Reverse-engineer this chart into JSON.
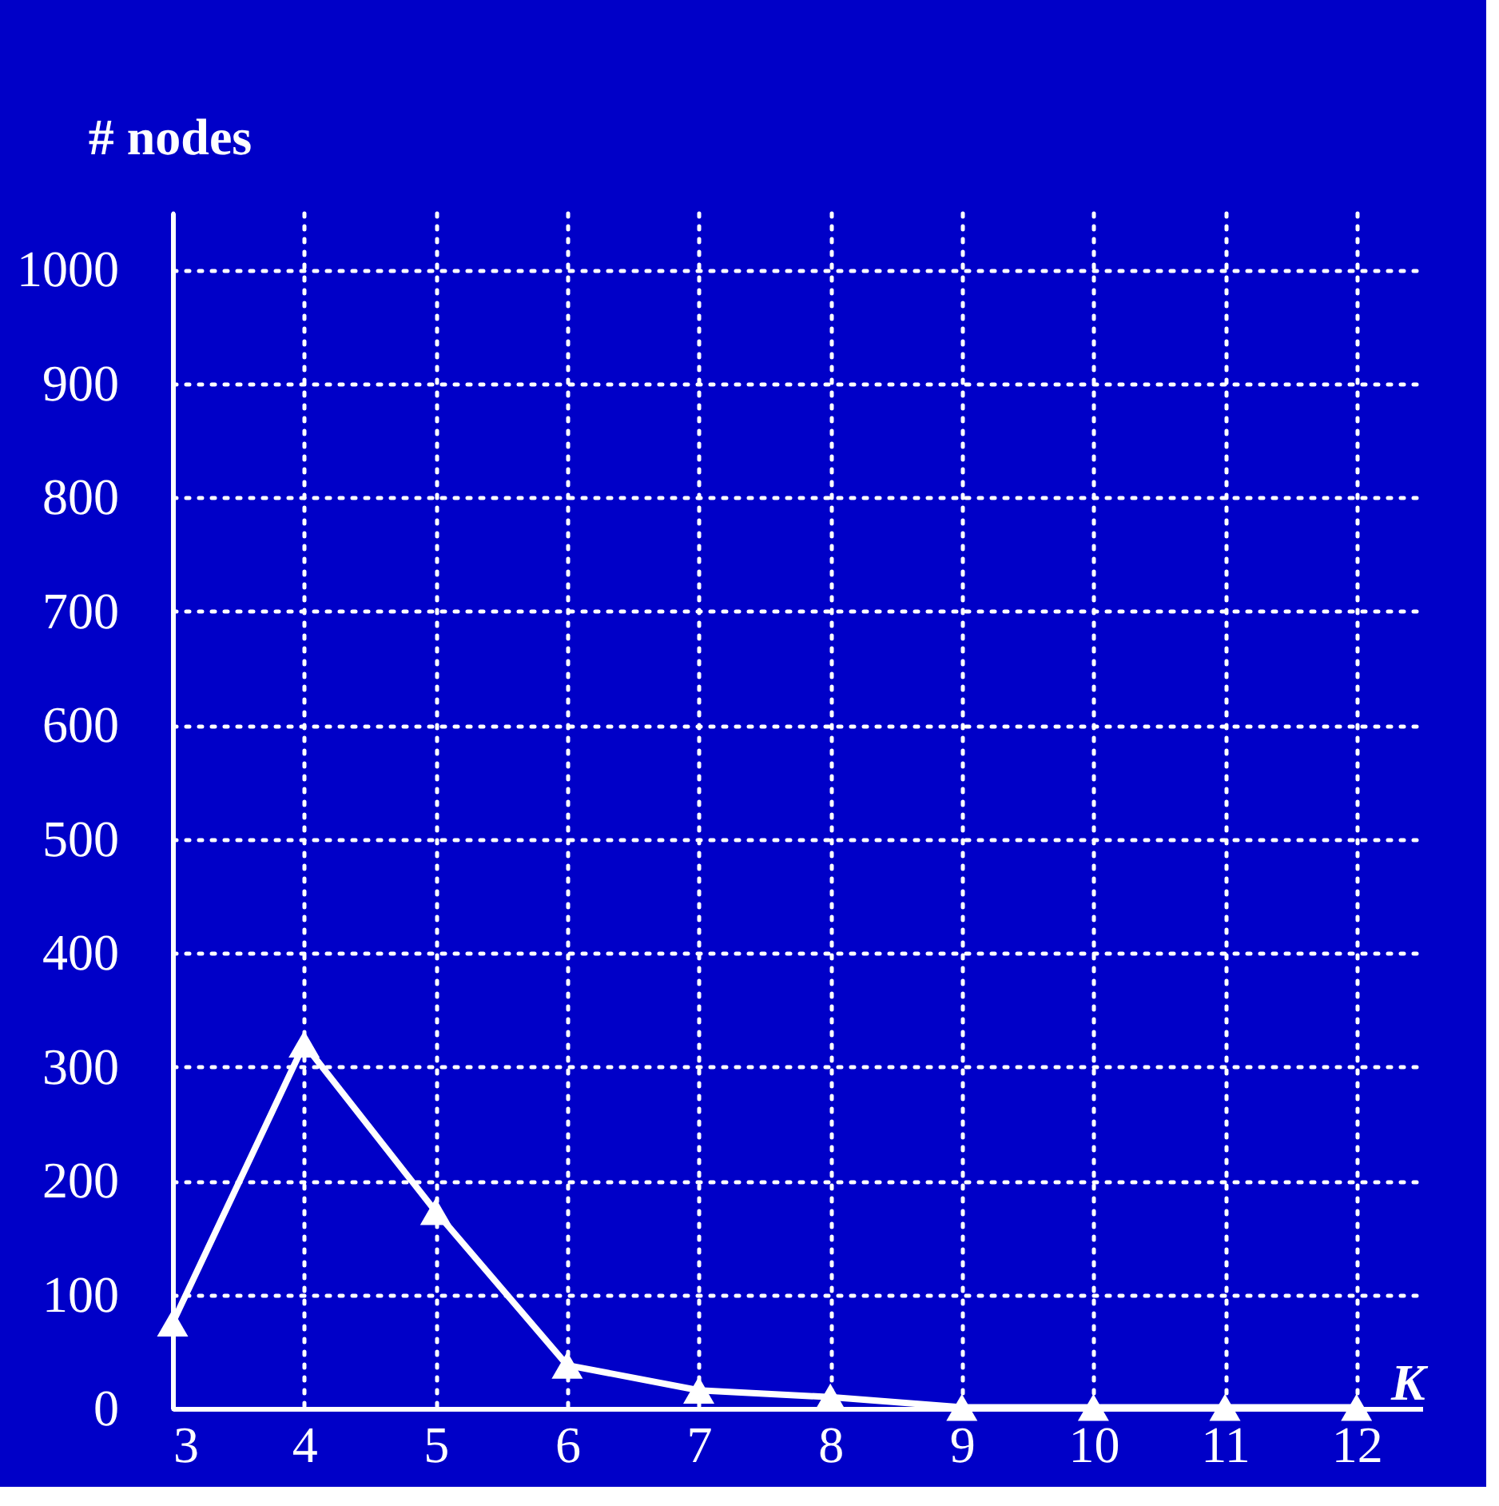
{
  "chart_data": {
    "type": "line",
    "xlabel": "K",
    "ylabel": "# nodes",
    "x": [
      3,
      4,
      5,
      6,
      7,
      8,
      9,
      10,
      11,
      12
    ],
    "series": [
      {
        "color": "#ffffff",
        "values": [
          75,
          320,
          173,
          38,
          16,
          10,
          1,
          1,
          1,
          1
        ]
      }
    ],
    "xlim": [
      3,
      12.5
    ],
    "xticks": [
      3,
      4,
      5,
      6,
      7,
      8,
      9,
      10,
      11,
      12
    ],
    "ylim": [
      0,
      1050
    ],
    "yticks": [
      0,
      100,
      200,
      300,
      400,
      500,
      600,
      700,
      800,
      900,
      1000
    ],
    "grid": true,
    "marker": "triangle",
    "line_style": "solid",
    "legend": false
  }
}
